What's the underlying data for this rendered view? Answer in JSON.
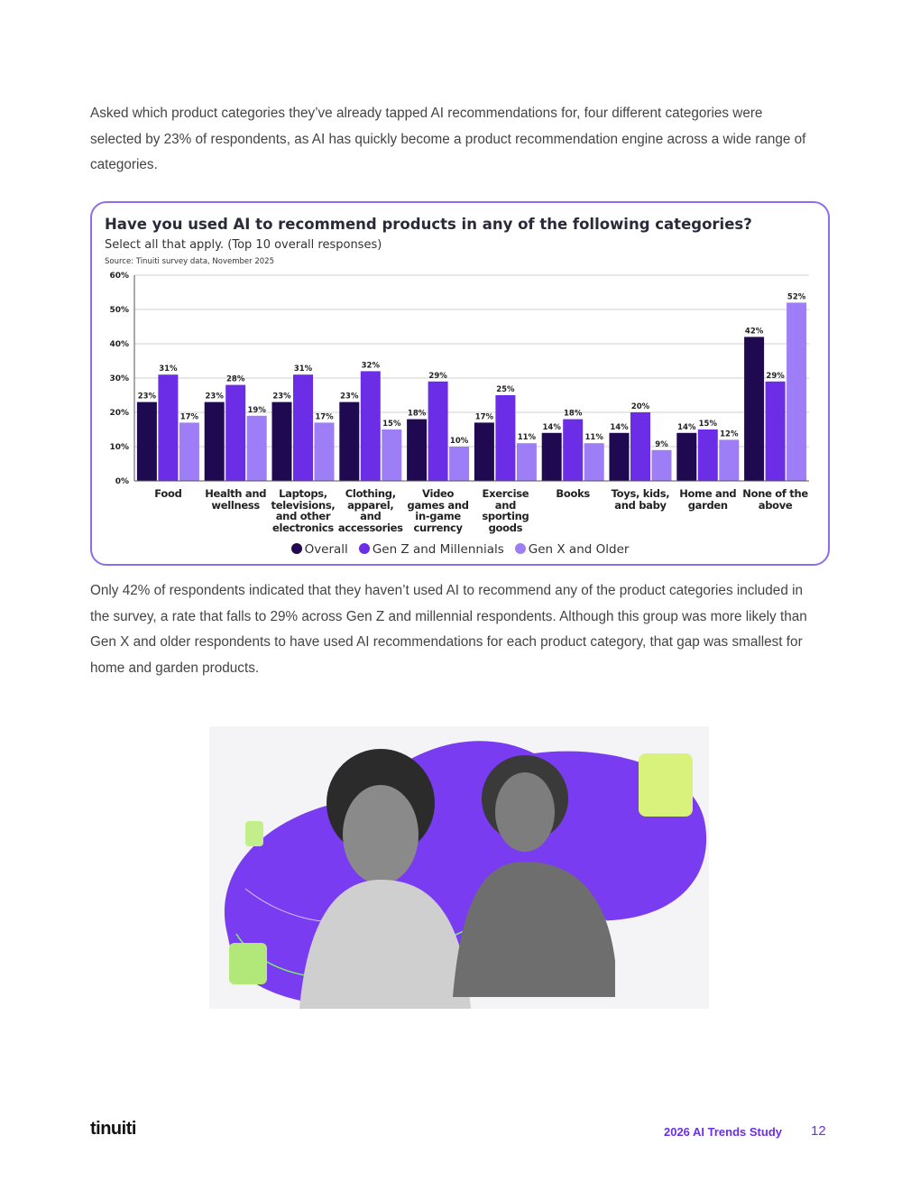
{
  "paragraphs": [
    "Asked which product categories they’ve already tapped AI recommendations for, four different categories were selected by 23% of respondents, as AI has quickly become a product recommendation engine across a wide range of categories.",
    "Only 42% of respondents indicated that they haven’t used AI to recommend any of the product categories included in the survey, a rate that falls to 29% across Gen Z and millennial respondents. Although this group was more likely than Gen X and older respondents to have used AI recommendations for each product category, that gap was smallest for home and garden products."
  ],
  "chart_data": {
    "type": "bar",
    "title": "Have you used AI to recommend products in any of the following categories?",
    "subtitle": "Select all that apply. (Top 10 overall responses)",
    "source": "Source: Tinuiti survey data, November 2025",
    "categories": [
      "Food",
      "Health and wellness",
      "Laptops, televisions, and other electronics",
      "Clothing, apparel, and accessories",
      "Video games and in-game currency",
      "Exercise and sporting goods",
      "Books",
      "Toys, kids, and baby",
      "Home and garden",
      "None of the above"
    ],
    "series": [
      {
        "name": "Overall",
        "color": "#1f0a52",
        "values": [
          23,
          23,
          23,
          23,
          18,
          17,
          14,
          14,
          14,
          42
        ],
        "value_labels": [
          "23%",
          "23%",
          "23%",
          "23%",
          "18%",
          "17%",
          "14%",
          "14%",
          "14%",
          "42%"
        ]
      },
      {
        "name": "Gen Z and Millennials",
        "color": "#6b2ee6",
        "values": [
          31,
          28,
          31,
          32,
          29,
          25,
          18,
          20,
          15,
          29
        ],
        "value_labels": [
          "31%",
          "28%",
          "31%",
          "32%",
          "29%",
          "25%",
          "18%",
          "20%",
          "15%",
          "29%"
        ]
      },
      {
        "name": "Gen X and Older",
        "color": "#9d7ef6",
        "values": [
          17,
          19,
          17,
          15,
          10,
          11,
          11,
          9,
          12,
          52
        ],
        "value_labels": [
          "17%",
          "19%",
          "17%",
          "15%",
          "10%",
          "11%",
          "11%",
          "9%",
          "12%",
          "52%"
        ]
      }
    ],
    "ylim": [
      0,
      60
    ],
    "yticks": [
      {
        "value": 0,
        "label": "0%"
      },
      {
        "value": 10,
        "label": "10%"
      },
      {
        "value": 20,
        "label": "20%"
      },
      {
        "value": 30,
        "label": "30%"
      },
      {
        "value": 40,
        "label": "40%"
      },
      {
        "value": 50,
        "label": "50%"
      },
      {
        "value": 60,
        "label": "60%"
      }
    ],
    "grid": true,
    "legend": "bottom"
  },
  "footer": {
    "logo": "tinuiti",
    "report": "2026 AI Trends Study",
    "page": "12"
  }
}
